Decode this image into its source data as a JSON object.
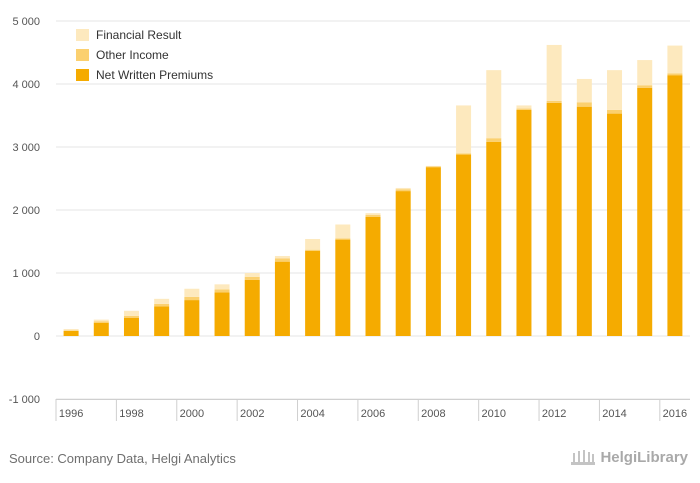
{
  "chart_data": {
    "type": "bar",
    "stacked": true,
    "categories": [
      "1996",
      "1997",
      "1998",
      "1999",
      "2000",
      "2001",
      "2002",
      "2003",
      "2004",
      "2005",
      "2006",
      "2007",
      "2008",
      "2009",
      "2010",
      "2011",
      "2012",
      "2013",
      "2014",
      "2015",
      "2016"
    ],
    "x_tick_labels": [
      "1996",
      "1998",
      "2000",
      "2002",
      "2004",
      "2006",
      "2008",
      "2010",
      "2012",
      "2014",
      "2016"
    ],
    "series": [
      {
        "name": "Net Written Premiums",
        "color": "#f5ab00",
        "values": [
          80,
          210,
          290,
          470,
          570,
          690,
          890,
          1180,
          1350,
          1530,
          1890,
          2300,
          2680,
          2880,
          3080,
          3590,
          3700,
          3640,
          3530,
          3940,
          4140
        ]
      },
      {
        "name": "Other Income",
        "color": "#fbd06f",
        "values": [
          10,
          20,
          30,
          40,
          50,
          50,
          50,
          50,
          20,
          20,
          30,
          30,
          10,
          20,
          60,
          20,
          30,
          70,
          60,
          40,
          30
        ]
      },
      {
        "name": "Financial Result",
        "color": "#fde9be",
        "values": [
          20,
          30,
          80,
          80,
          130,
          80,
          60,
          40,
          170,
          220,
          30,
          20,
          10,
          760,
          1080,
          50,
          890,
          370,
          630,
          400,
          440
        ]
      }
    ],
    "legend_order": [
      "Financial Result",
      "Other Income",
      "Net Written Premiums"
    ],
    "y_ticks": [
      "5 000",
      "4 000",
      "3 000",
      "2 000",
      "1 000",
      "0",
      "-1 000"
    ],
    "ylim": [
      -1000,
      5000
    ],
    "grid": true,
    "legend_position": "top-left"
  },
  "footer": {
    "source": "Source: Company Data, Helgi Analytics",
    "brand": "HelgiLibrary"
  }
}
